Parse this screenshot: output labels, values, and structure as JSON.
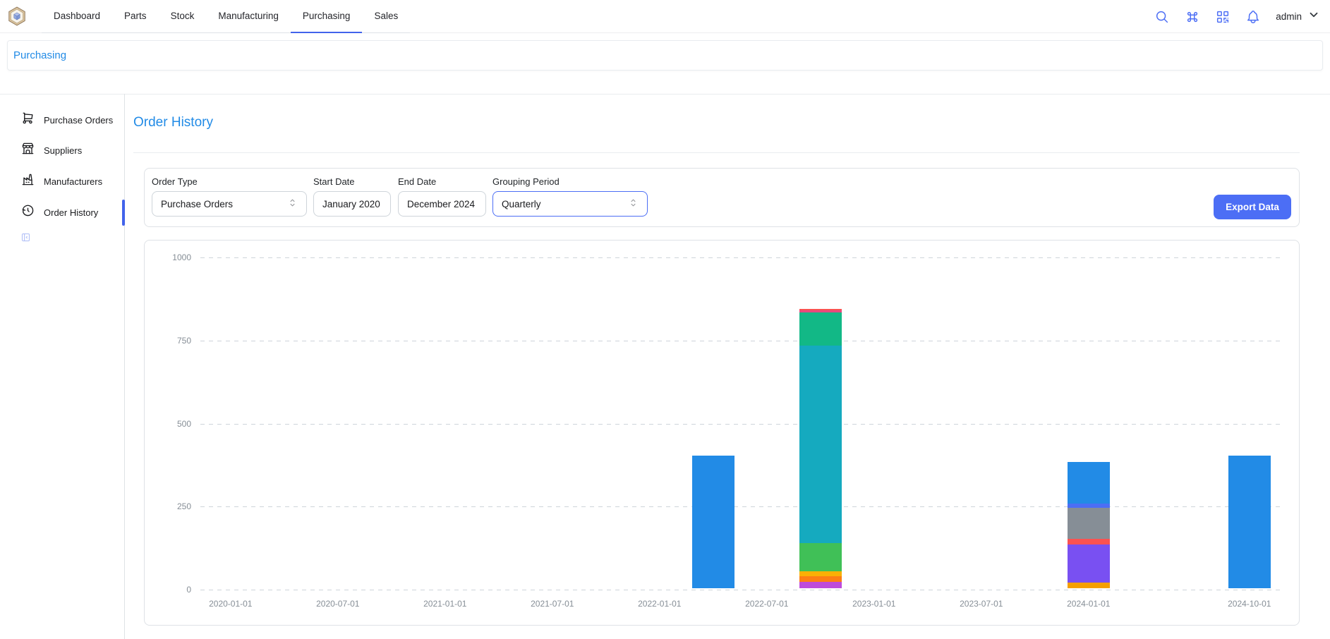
{
  "header": {
    "tabs": [
      {
        "label": "Dashboard",
        "active": false
      },
      {
        "label": "Parts",
        "active": false
      },
      {
        "label": "Stock",
        "active": false
      },
      {
        "label": "Manufacturing",
        "active": false
      },
      {
        "label": "Purchasing",
        "active": true
      },
      {
        "label": "Sales",
        "active": false
      }
    ],
    "icons": [
      "search",
      "command",
      "qrcode",
      "bell"
    ],
    "username": "admin"
  },
  "breadcrumb": {
    "label": "Purchasing"
  },
  "sidebar": {
    "items": [
      {
        "label": "Purchase Orders",
        "icon": "shopping-cart",
        "active": false
      },
      {
        "label": "Suppliers",
        "icon": "building-store",
        "active": false
      },
      {
        "label": "Manufacturers",
        "icon": "building-factory",
        "active": false
      },
      {
        "label": "Order History",
        "icon": "history",
        "active": true
      }
    ],
    "collapse_icon": "layout-sidebar-collapse"
  },
  "page": {
    "title": "Order History"
  },
  "filters": {
    "order_type": {
      "label": "Order Type",
      "value": "Purchase Orders",
      "type": "select"
    },
    "start_date": {
      "label": "Start Date",
      "value": "January 2020",
      "type": "input"
    },
    "end_date": {
      "label": "End Date",
      "value": "December 2024",
      "type": "input"
    },
    "grouping_period": {
      "label": "Grouping Period",
      "value": "Quarterly",
      "type": "select",
      "focused": true
    },
    "export_button": "Export Data"
  },
  "colors": {
    "accent_blue": "#228be6",
    "primary_indigo": "#4c6ef5",
    "nav_underline": "#4263eb",
    "axis_label": "#868e96",
    "gridline": "#ced4da",
    "card_border": "#dee2e6"
  },
  "chart_data": {
    "type": "bar",
    "stacked": true,
    "title": "",
    "xlabel": "",
    "ylabel": "",
    "ylim": [
      0,
      1000
    ],
    "y_ticks": [
      0,
      250,
      500,
      750,
      1000
    ],
    "grid": true,
    "legend": false,
    "total_quarters": 20,
    "x_ticks": [
      {
        "label": "2020-01-01",
        "quarter": 0
      },
      {
        "label": "2020-07-01",
        "quarter": 2
      },
      {
        "label": "2021-01-01",
        "quarter": 4
      },
      {
        "label": "2021-07-01",
        "quarter": 6
      },
      {
        "label": "2022-01-01",
        "quarter": 8
      },
      {
        "label": "2022-07-01",
        "quarter": 10
      },
      {
        "label": "2023-01-01",
        "quarter": 12
      },
      {
        "label": "2023-07-01",
        "quarter": 14
      },
      {
        "label": "2024-01-01",
        "quarter": 16
      },
      {
        "label": "2024-10-01",
        "quarter": 19
      }
    ],
    "bars": [
      {
        "x": "2022-04-01",
        "quarter": 9,
        "total": 400,
        "segments": [
          {
            "color": "#228be6",
            "value": 400
          }
        ]
      },
      {
        "x": "2022-10-01",
        "quarter": 11,
        "total": 842,
        "segments": [
          {
            "color": "#be4bdb",
            "value": 20
          },
          {
            "color": "#fd7e14",
            "value": 17
          },
          {
            "color": "#fab005",
            "value": 13
          },
          {
            "color": "#40c057",
            "value": 85
          },
          {
            "color": "#15aabf",
            "value": 595
          },
          {
            "color": "#12b886",
            "value": 100
          },
          {
            "color": "#e64980",
            "value": 8
          },
          {
            "color": "#fa5252",
            "value": 4
          }
        ]
      },
      {
        "x": "2024-01-01",
        "quarter": 16,
        "total": 380,
        "segments": [
          {
            "color": "#f59f00",
            "value": 17
          },
          {
            "color": "#7950f2",
            "value": 115
          },
          {
            "color": "#fa5252",
            "value": 16
          },
          {
            "color": "#868e96",
            "value": 95
          },
          {
            "color": "#4c6ef5",
            "value": 13
          },
          {
            "color": "#228be6",
            "value": 124
          }
        ]
      },
      {
        "x": "2024-10-01",
        "quarter": 19,
        "total": 400,
        "segments": [
          {
            "color": "#228be6",
            "value": 400
          }
        ]
      }
    ]
  }
}
